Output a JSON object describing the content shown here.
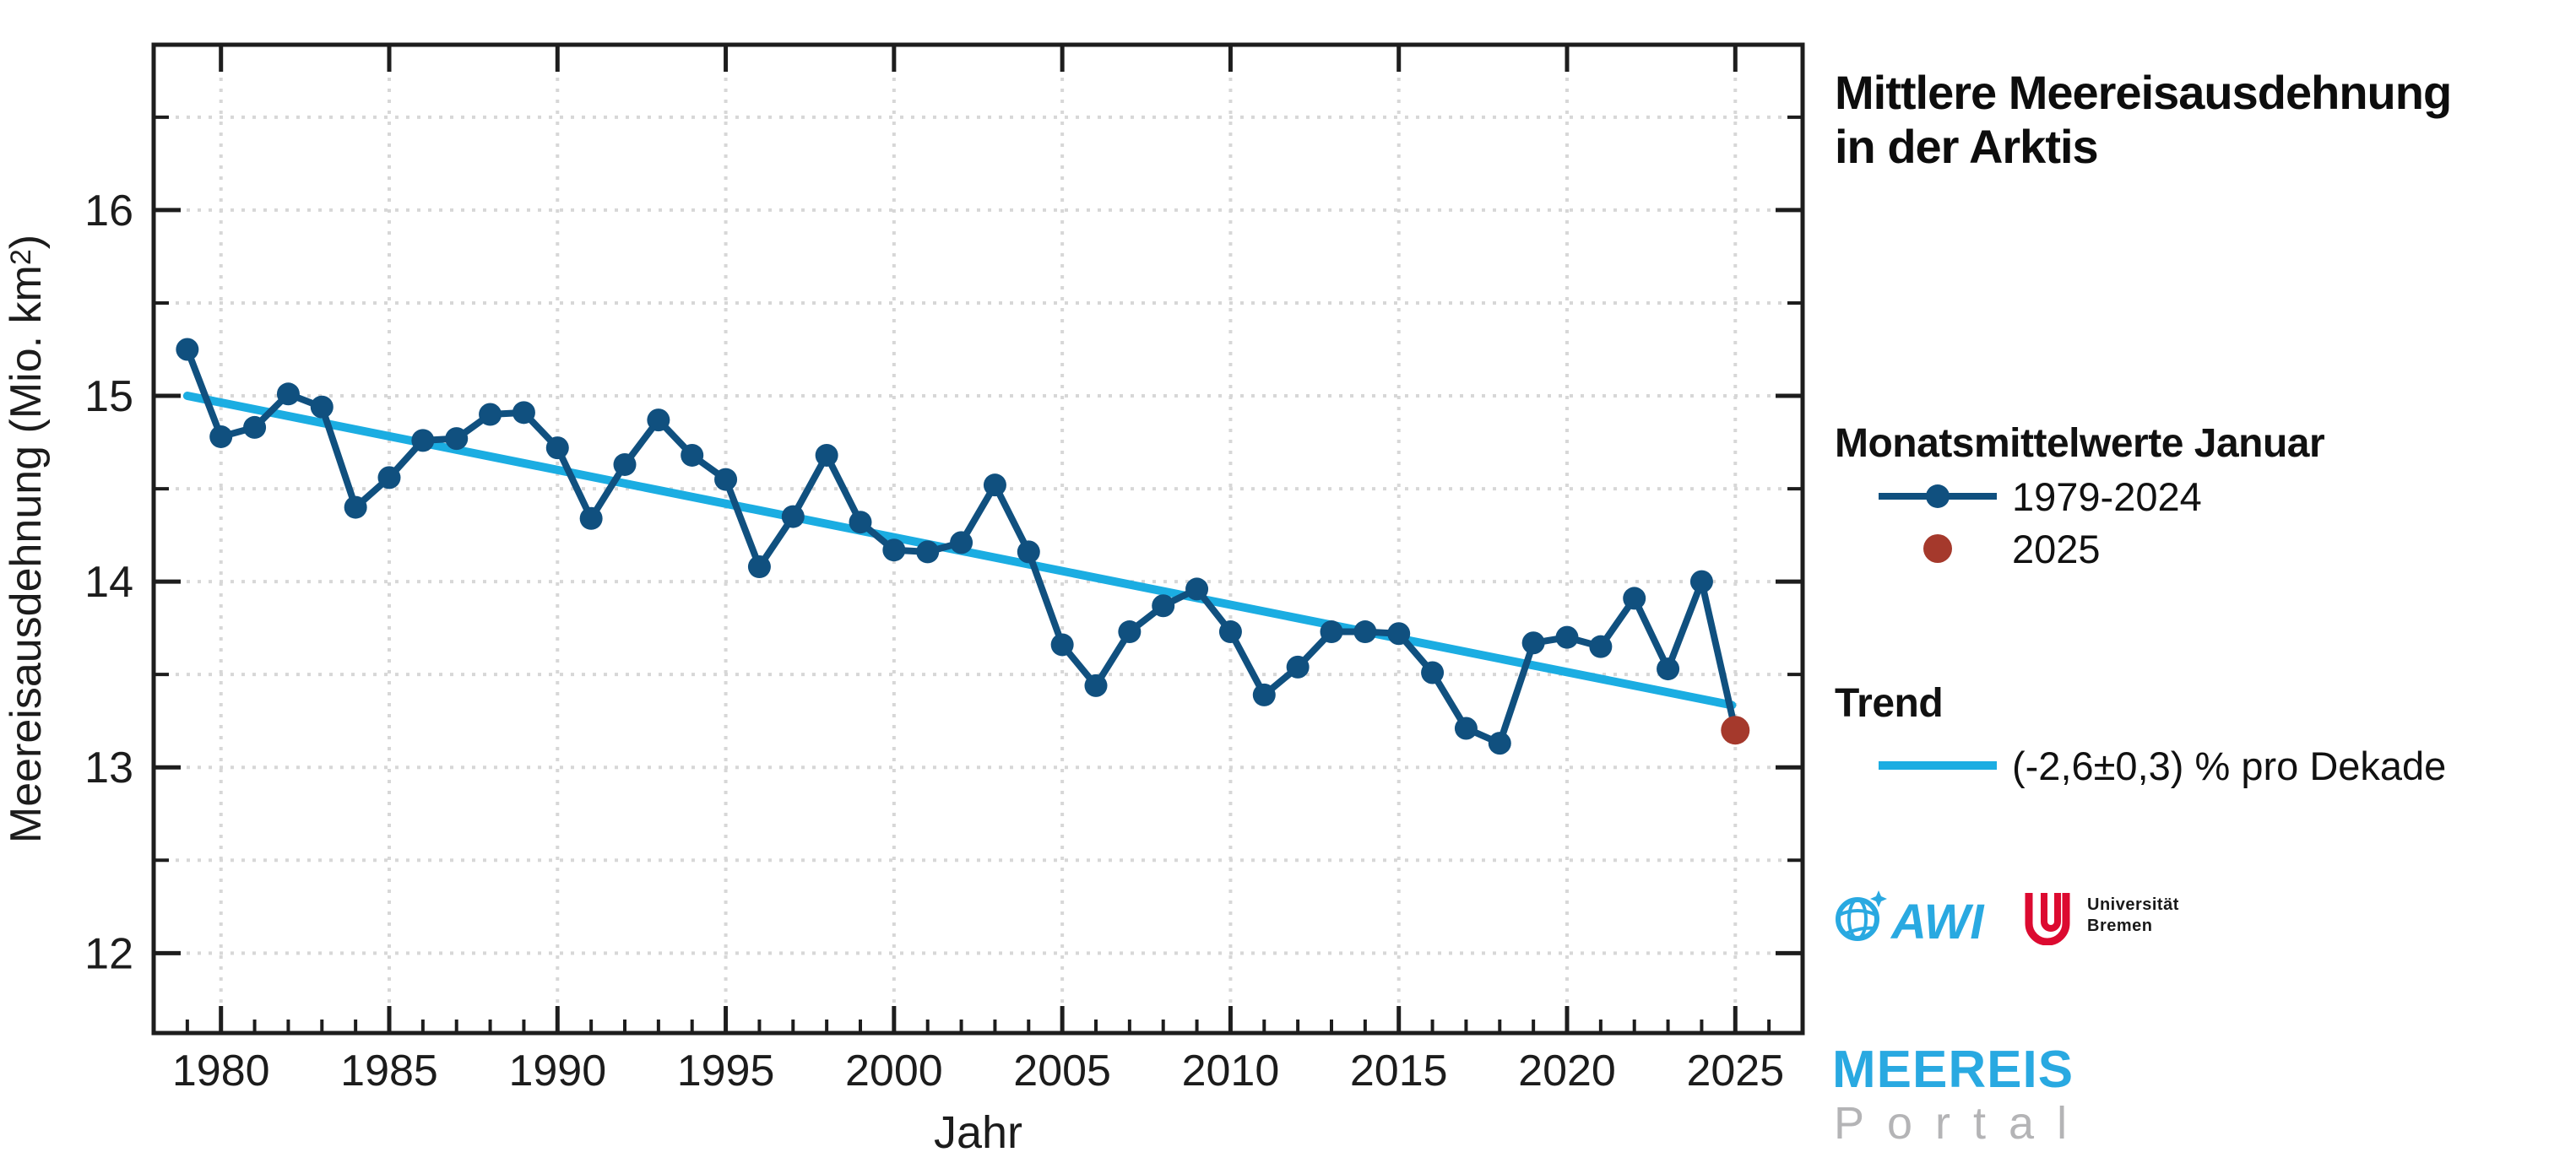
{
  "title": {
    "line1": "Mittlere Meereisausdehnung",
    "line2": "in der Arktis"
  },
  "legend": {
    "heading": "Monatsmittelwerte Januar",
    "series_main_label": "1979-2024",
    "series_2025_label": "2025",
    "trend_heading": "Trend",
    "trend_label": "(-2,6±0,3) % pro Dekade"
  },
  "logos": {
    "awi": "AWI",
    "uni_bremen_line1": "Universität",
    "uni_bremen_line2": "Bremen",
    "meereis": "MEEREIS",
    "portal": "Portal"
  },
  "colors": {
    "series-blue": "#10507f",
    "trend-cyan": "#1bade2",
    "dot-red": "#a5392c",
    "cyan": "#29a9e1",
    "ub-red": "#dc0a30",
    "axis-dark": "#1d1d1d",
    "grid-gray": "#d7d7d7",
    "label-dark": "#1c1c1c"
  },
  "chart_data": {
    "type": "line",
    "title": "",
    "xlabel": "Jahr",
    "ylabel_pre": "Meereisausdehnung (Mio. km",
    "ylabel_sup": "2",
    "ylabel_post": ")",
    "xlim": [
      1978,
      2027
    ],
    "ylim": [
      11.57,
      16.89
    ],
    "xticks": [
      1980,
      1985,
      1990,
      1995,
      2000,
      2005,
      2010,
      2015,
      2020,
      2025
    ],
    "yticks": [
      12,
      13,
      14,
      15,
      16
    ],
    "xtick_minor_step": 1,
    "ytick_minor_step": 0.5,
    "grid": "dotted",
    "legend_position": "right",
    "series": [
      {
        "name": "1979-2024",
        "role": "main",
        "marker": "circle",
        "years_range": [
          1979,
          2024
        ],
        "values": [
          15.25,
          14.78,
          14.83,
          15.01,
          14.94,
          14.4,
          14.56,
          14.76,
          14.77,
          14.9,
          14.91,
          14.72,
          14.34,
          14.63,
          14.87,
          14.68,
          14.55,
          14.08,
          14.35,
          14.68,
          14.32,
          14.17,
          14.16,
          14.21,
          14.52,
          14.16,
          13.66,
          13.44,
          13.73,
          13.87,
          13.96,
          13.73,
          13.39,
          13.54,
          13.73,
          13.73,
          13.72,
          13.51,
          13.21,
          13.13,
          13.67,
          13.7,
          13.65,
          13.91,
          13.53,
          14.0
        ]
      },
      {
        "name": "2025",
        "role": "highlight",
        "marker": "circle",
        "x": [
          2025
        ],
        "values": [
          13.2
        ]
      },
      {
        "name": "Trend",
        "role": "trend",
        "x": [
          1979,
          2024.9
        ],
        "values": [
          15.0,
          13.335
        ]
      }
    ]
  }
}
